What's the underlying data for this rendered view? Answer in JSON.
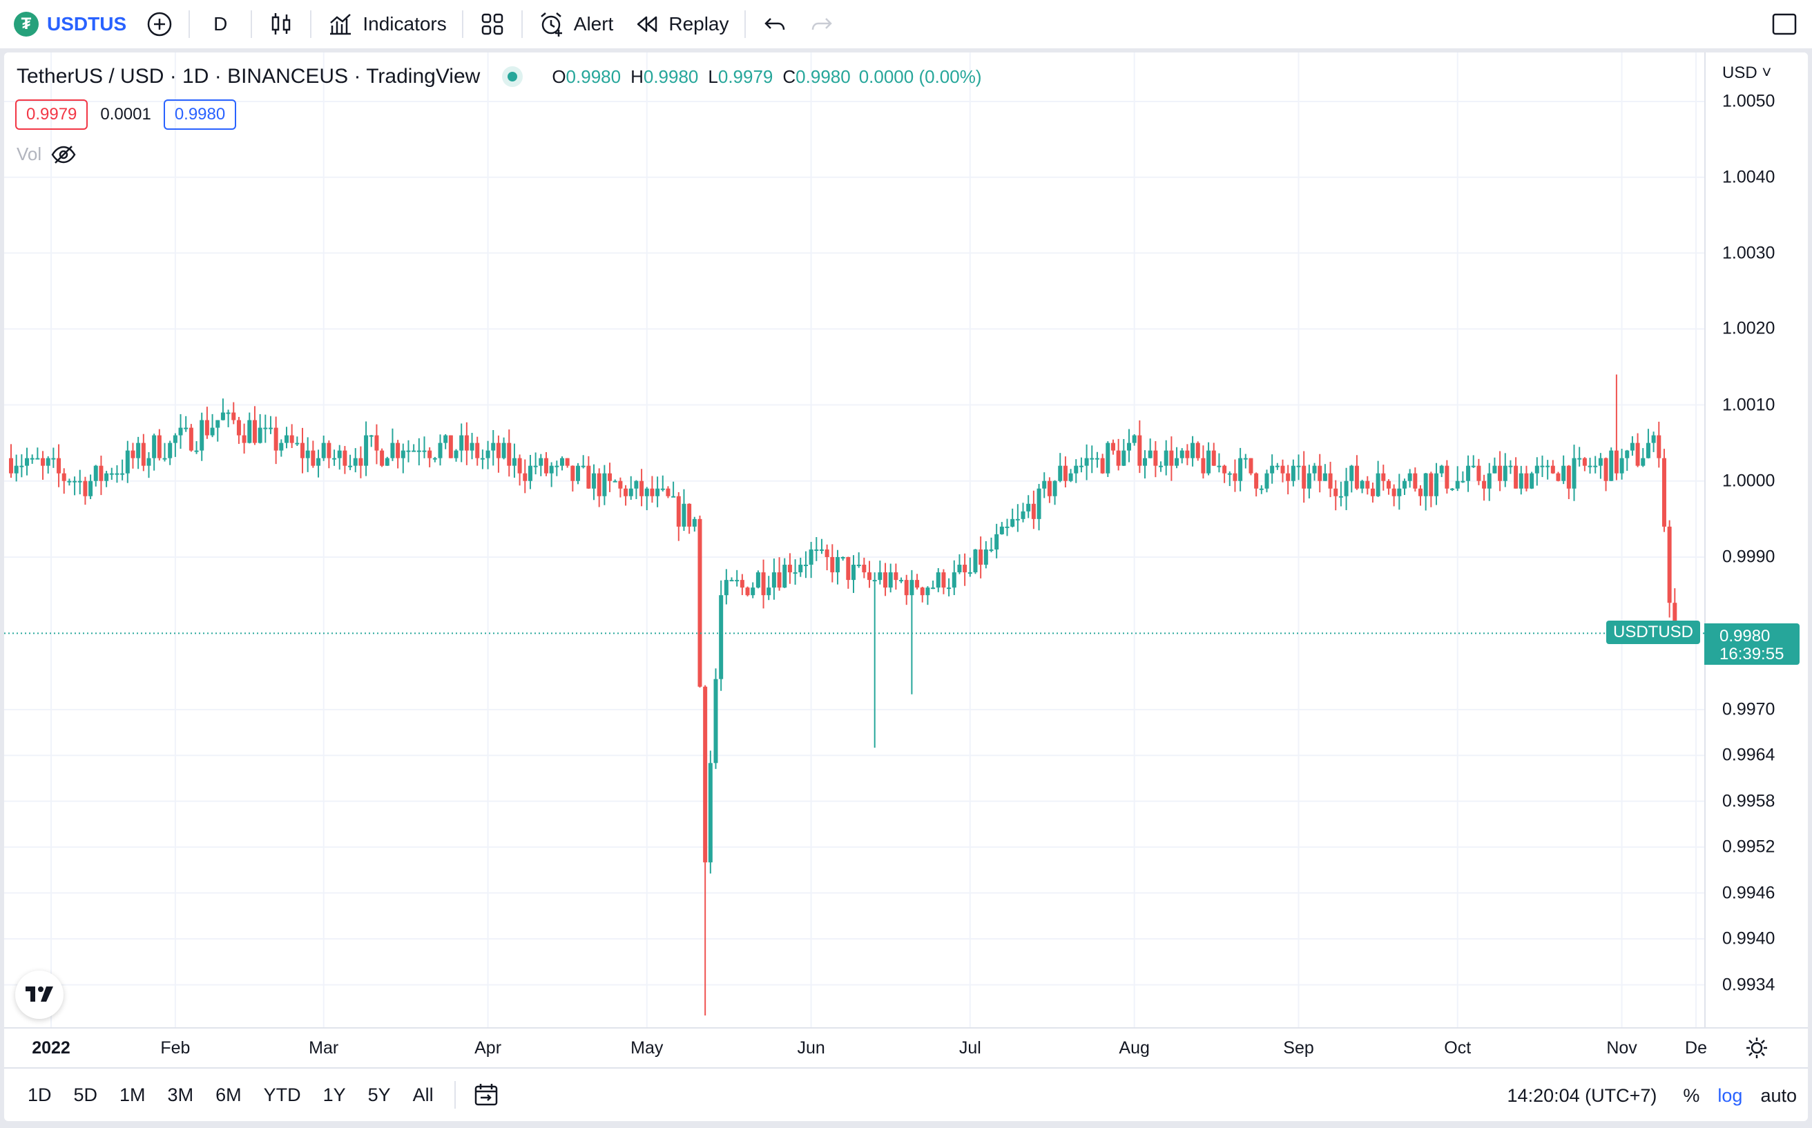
{
  "toolbar": {
    "symbol": "USDTUSD",
    "symbol_display": "USDTUS",
    "interval": "D",
    "indicators_label": "Indicators",
    "alert_label": "Alert",
    "replay_label": "Replay"
  },
  "legend": {
    "title": "TetherUS / USD · 1D · BINANCEUS · TradingView",
    "open_key": "O",
    "open": "0.9980",
    "high_key": "H",
    "high": "0.9980",
    "low_key": "L",
    "low": "0.9979",
    "close_key": "C",
    "close": "0.9980",
    "change": "0.0000 (0.00%)",
    "bid": "0.9979",
    "spread": "0.0001",
    "ask": "0.9980",
    "vol_label": "Vol"
  },
  "price_axis": {
    "currency": "USD",
    "ticks": [
      "1.0050",
      "1.0040",
      "1.0030",
      "1.0020",
      "1.0010",
      "1.0000",
      "0.9990",
      "0.9970",
      "0.9964",
      "0.9958",
      "0.9952",
      "0.9946",
      "0.9940",
      "0.9934"
    ],
    "last_price": "0.9980",
    "countdown": "16:39:55",
    "series_label": "USDTUSD"
  },
  "time_axis": {
    "labels": [
      "2022",
      "Feb",
      "Mar",
      "Apr",
      "May",
      "Jun",
      "Jul",
      "Aug",
      "Sep",
      "Oct",
      "Nov",
      "De"
    ]
  },
  "bottom_bar": {
    "ranges": [
      "1D",
      "5D",
      "1M",
      "3M",
      "6M",
      "YTD",
      "1Y",
      "5Y",
      "All"
    ],
    "clock": "14:20:04 (UTC+7)",
    "percent": "%",
    "log": "log",
    "auto": "auto"
  },
  "colors": {
    "up": "#26a69a",
    "down": "#ef5350",
    "accent": "#2962ff"
  },
  "chart_data": {
    "type": "candlestick",
    "title": "TetherUS / USD · 1D · BINANCEUS · TradingView",
    "x_range": [
      "2022-01-01",
      "2022-11-15"
    ],
    "y_range": [
      0.993,
      1.0051
    ],
    "y_scale": "log",
    "last_close": 0.998,
    "series": [
      {
        "name": "USDTUSD",
        "checkpoints": [
          {
            "date": "2022-01-01",
            "close": 1.0003
          },
          {
            "date": "2022-01-15",
            "close": 1.0
          },
          {
            "date": "2022-02-10",
            "close": 1.0008
          },
          {
            "date": "2022-03-01",
            "close": 1.0003
          },
          {
            "date": "2022-03-20",
            "close": 1.0005
          },
          {
            "date": "2022-04-15",
            "close": 1.0001
          },
          {
            "date": "2022-05-01",
            "close": 0.9998
          },
          {
            "date": "2022-05-10",
            "close": 0.9995
          },
          {
            "date": "2022-05-12",
            "close": 0.9952,
            "low": 0.993
          },
          {
            "date": "2022-05-15",
            "close": 0.9985
          },
          {
            "date": "2022-06-01",
            "close": 0.999
          },
          {
            "date": "2022-06-13",
            "close": 0.9987,
            "low": 0.9965
          },
          {
            "date": "2022-06-20",
            "close": 0.9986,
            "low": 0.9972
          },
          {
            "date": "2022-07-01",
            "close": 0.9988
          },
          {
            "date": "2022-07-20",
            "close": 1.0002
          },
          {
            "date": "2022-08-01",
            "close": 1.0004
          },
          {
            "date": "2022-09-01",
            "close": 1.0
          },
          {
            "date": "2022-10-01",
            "close": 1.0
          },
          {
            "date": "2022-10-31",
            "close": 1.0002,
            "high": 1.0014
          },
          {
            "date": "2022-11-08",
            "close": 1.0005
          },
          {
            "date": "2022-11-10",
            "close": 0.9984
          },
          {
            "date": "2022-11-11",
            "close": 0.998
          }
        ]
      }
    ]
  }
}
